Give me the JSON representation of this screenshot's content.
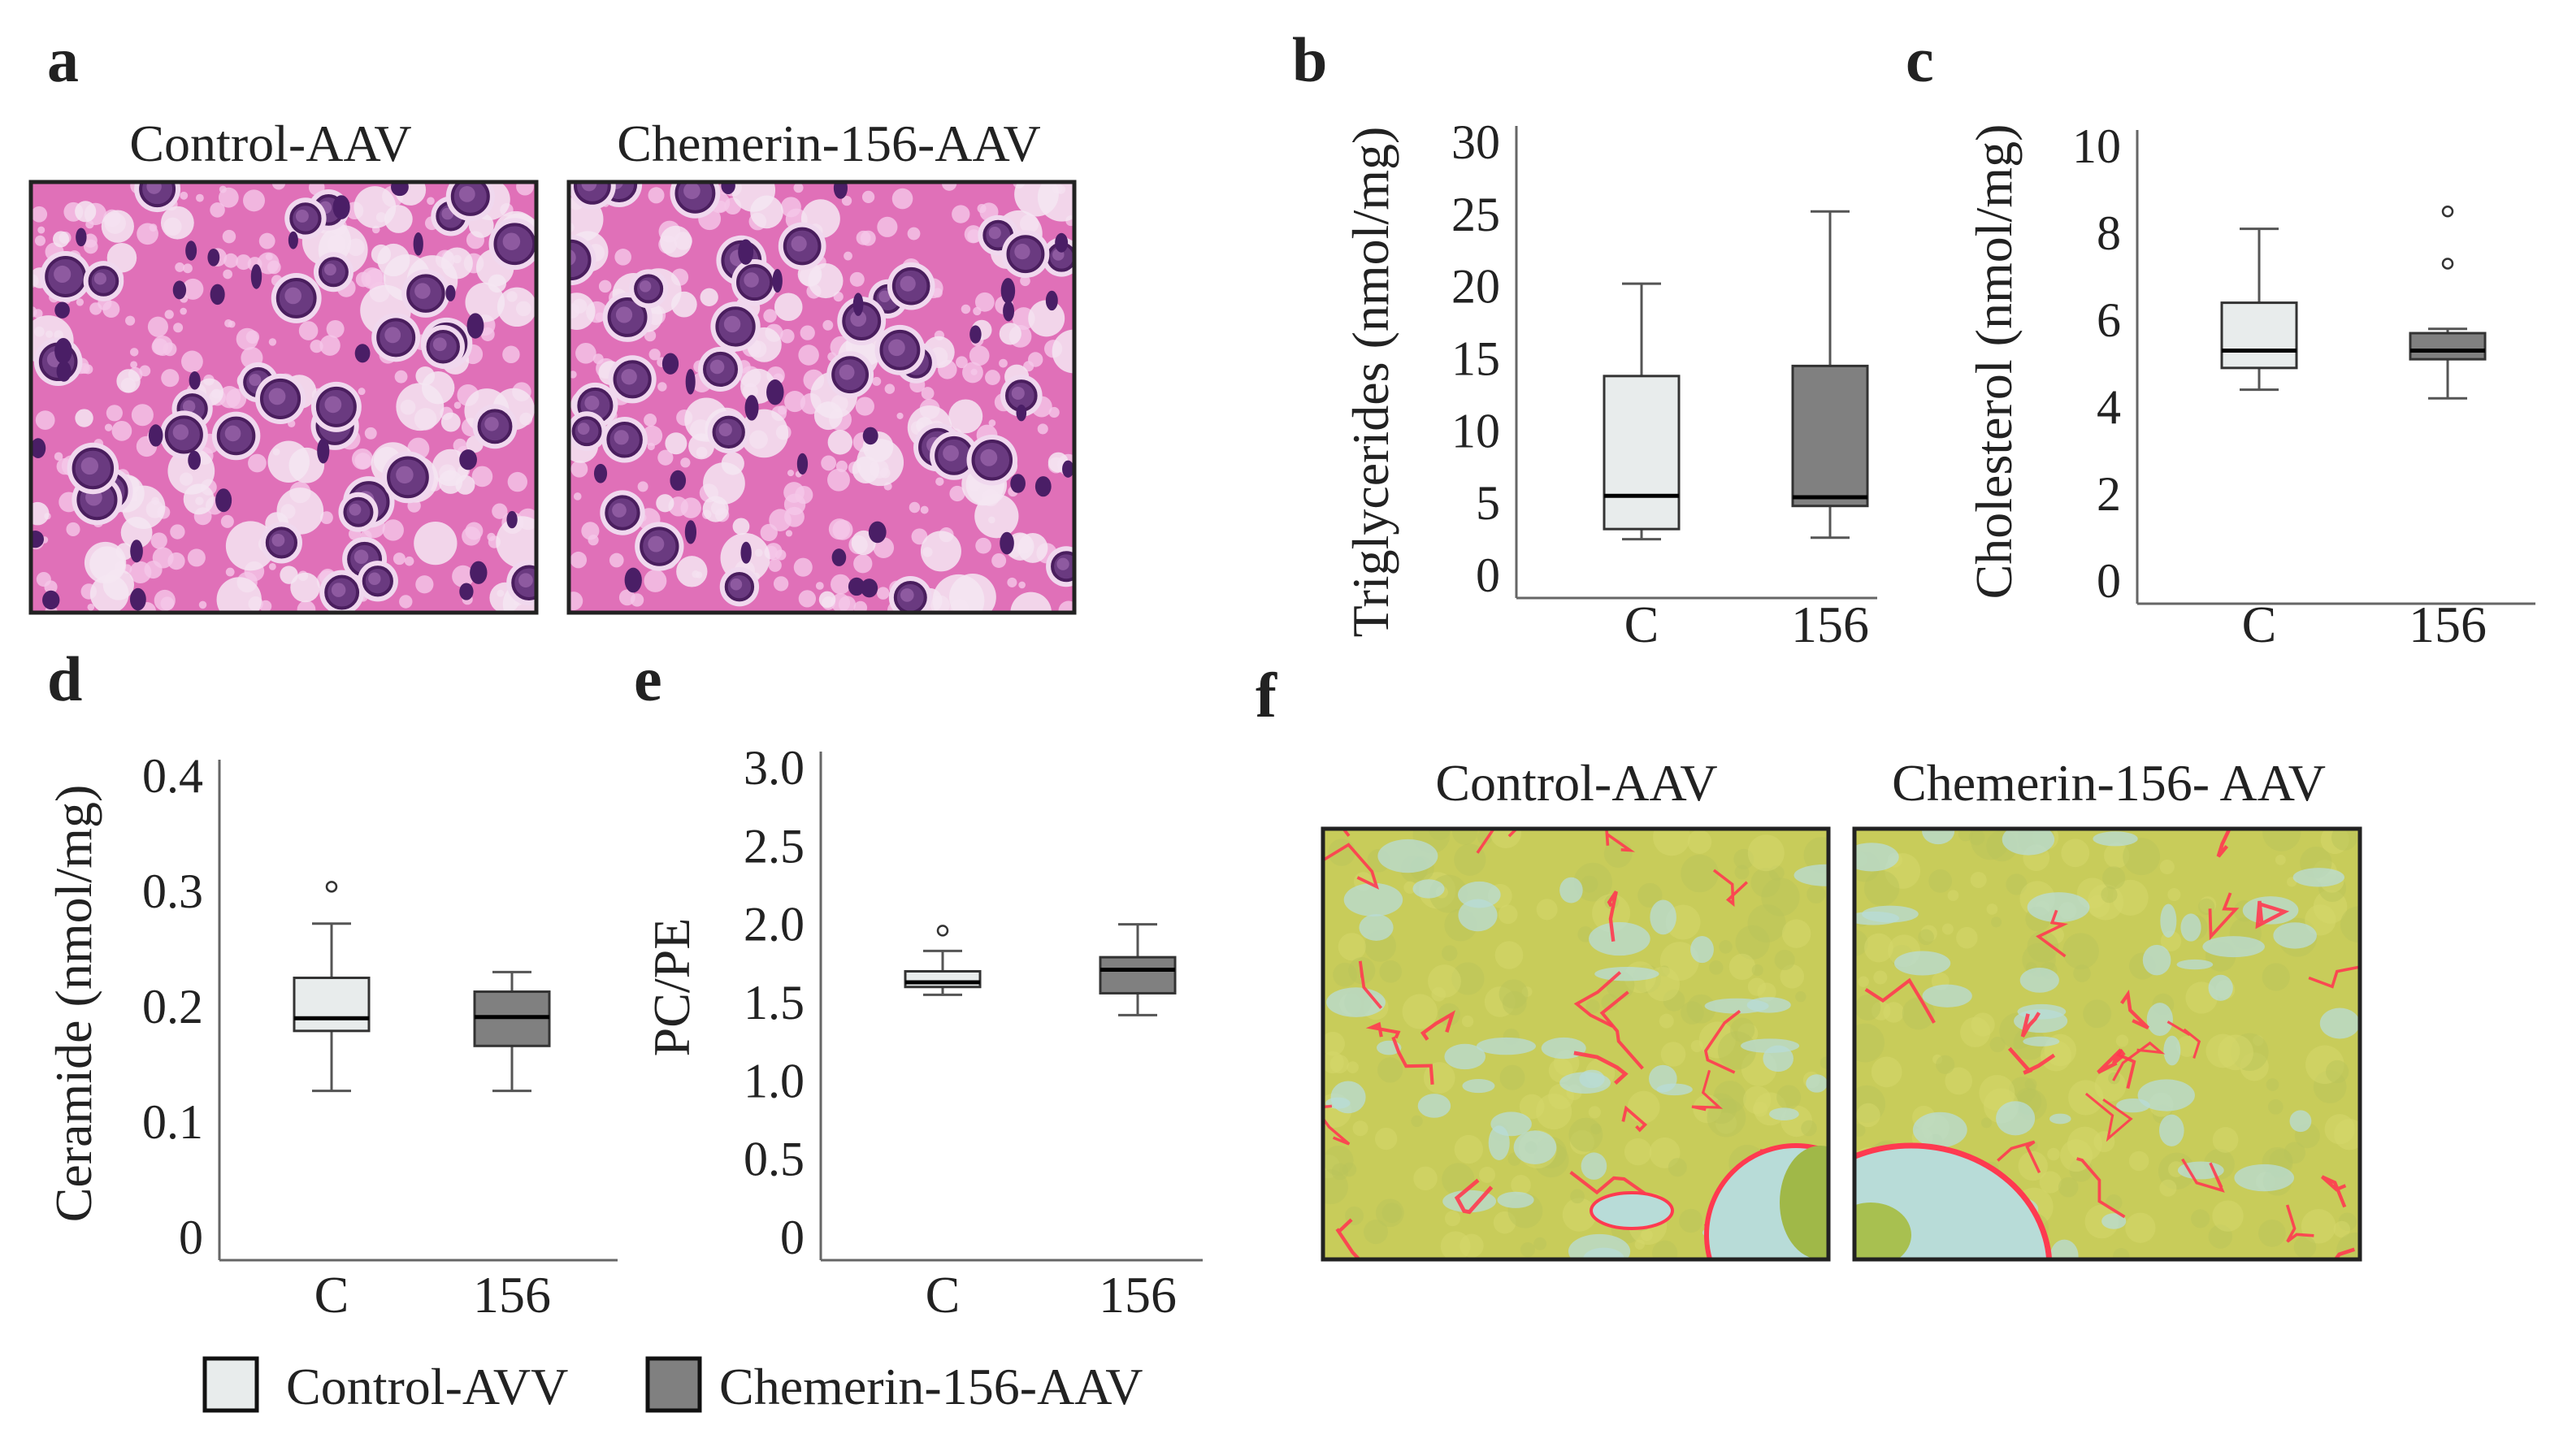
{
  "panel_letters": {
    "a": "a",
    "b": "b",
    "c": "c",
    "d": "d",
    "e": "e",
    "f": "f"
  },
  "panel_a": {
    "left_title": "Control-AAV",
    "right_title": "Chemerin-156-AAV",
    "stain": "H&E liver histology"
  },
  "panel_f": {
    "left_title": "Control-AAV",
    "right_title": "Chemerin-156- AAV",
    "stain": "Sirius red / fast green liver histology"
  },
  "colors": {
    "control": "#e8ecec",
    "chemerin": "#808080",
    "he_pink": "#e070b8",
    "he_nucleus": "#5a2a70",
    "sirius_bg": "#c8cc5a",
    "sirius_red": "#ff3a50",
    "sirius_blue": "#b8dcd8"
  },
  "legend": [
    {
      "label": "Control-AVV",
      "color": "#e8ecec"
    },
    {
      "label": "Chemerin-156-AAV",
      "color": "#808080"
    }
  ],
  "chart_data": [
    {
      "panel": "b",
      "type": "box",
      "ylabel": "Triglycerides (nmol/mg)",
      "ylim": [
        0,
        30
      ],
      "yticks": [
        "0",
        "5",
        "10",
        "15",
        "20",
        "25",
        "30"
      ],
      "categories": [
        "C",
        "156"
      ],
      "boxes": [
        {
          "category": "C",
          "whisker_low": 2.5,
          "q1": 3.2,
          "median": 5.5,
          "q3": 13.8,
          "whisker_high": 20.2,
          "outliers": [],
          "color": "#e8ecec"
        },
        {
          "category": "156",
          "whisker_low": 2.6,
          "q1": 4.8,
          "median": 5.4,
          "q3": 14.5,
          "whisker_high": 25.2,
          "outliers": [],
          "color": "#808080"
        }
      ]
    },
    {
      "panel": "c",
      "type": "box",
      "ylabel": "Cholesterol (nmol/mg)",
      "ylim": [
        0,
        10
      ],
      "yticks": [
        "0",
        "2",
        "4",
        "6",
        "8",
        "10"
      ],
      "categories": [
        "C",
        "156"
      ],
      "boxes": [
        {
          "category": "C",
          "whisker_low": 4.4,
          "q1": 4.9,
          "median": 5.3,
          "q3": 6.4,
          "whisker_high": 8.1,
          "outliers": [],
          "color": "#e8ecec"
        },
        {
          "category": "156",
          "whisker_low": 4.2,
          "q1": 5.1,
          "median": 5.3,
          "q3": 5.7,
          "whisker_high": 5.8,
          "outliers": [
            7.3,
            8.5
          ],
          "color": "#808080"
        }
      ]
    },
    {
      "panel": "d",
      "type": "box",
      "ylabel": "Ceramide (nmol/mg)",
      "ylim": [
        0,
        0.4
      ],
      "yticks": [
        "0",
        "0.1",
        "0.2",
        "0.3",
        "0.4"
      ],
      "categories": [
        "C",
        "156"
      ],
      "boxes": [
        {
          "category": "C",
          "whisker_low": 0.127,
          "q1": 0.179,
          "median": 0.19,
          "q3": 0.225,
          "whisker_high": 0.272,
          "outliers": [
            0.304
          ],
          "color": "#e8ecec"
        },
        {
          "category": "156",
          "whisker_low": 0.127,
          "q1": 0.166,
          "median": 0.191,
          "q3": 0.213,
          "whisker_high": 0.23,
          "outliers": [],
          "color": "#808080"
        }
      ]
    },
    {
      "panel": "e",
      "type": "box",
      "ylabel": "PC/PE",
      "ylim": [
        0,
        3.0
      ],
      "yticks": [
        "0",
        "0.5",
        "1.0",
        "1.5",
        "2.0",
        "2.5",
        "3.0"
      ],
      "categories": [
        "C",
        "156"
      ],
      "boxes": [
        {
          "category": "C",
          "whisker_low": 1.55,
          "q1": 1.6,
          "median": 1.63,
          "q3": 1.7,
          "whisker_high": 1.83,
          "outliers": [
            1.96
          ],
          "color": "#e8ecec"
        },
        {
          "category": "156",
          "whisker_low": 1.42,
          "q1": 1.56,
          "median": 1.71,
          "q3": 1.79,
          "whisker_high": 2.0,
          "outliers": [],
          "color": "#808080"
        }
      ]
    }
  ]
}
